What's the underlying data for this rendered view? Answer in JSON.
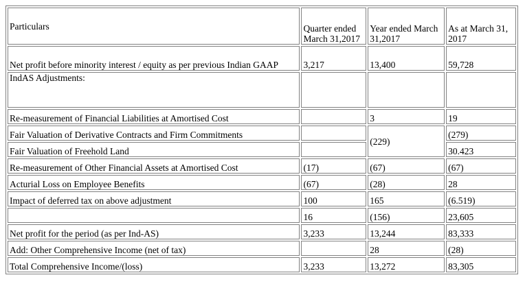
{
  "headers": {
    "particulars": "Particulars",
    "quarter": "Quarter ended March 31,2017",
    "year": "Year ended March 31,2017",
    "asat": "As at March 31, 2017"
  },
  "rows": {
    "net_profit_igaap": {
      "label": "Net profit before minority interest / equity as per previous Indian GAAP",
      "quarter": "3,217",
      "year": "13,400",
      "asat": "59,728"
    },
    "indas_title": "IndAS Adjustments:",
    "remeasure_fin_liab": {
      "label": "Re-measurement of Financial Liabilities at Amortised Cost",
      "quarter": "",
      "year": "3",
      "asat": "19"
    },
    "fv_derivatives": {
      "label": "Fair Valuation of Derivative Contracts and Firm Commitments",
      "quarter": "",
      "asat": "(279)"
    },
    "fv_derivatives_land_year": "(229)",
    "fv_land": {
      "label": "Fair Valuation of Freehold Land",
      "quarter": "",
      "asat": "30.423"
    },
    "remeasure_fin_assets": {
      "label": "Re-measurement of Other Financial Assets at Amortised Cost",
      "quarter": "(17)",
      "year": "(67)",
      "asat": "(67)"
    },
    "actuarial_loss": {
      "label": "Acturial Loss on Employee Benefits",
      "quarter": "(67)",
      "year": "(28)",
      "asat": "28"
    },
    "deferred_tax": {
      "label": "Impact of deferred tax on above adjustment",
      "quarter": "100",
      "year": "165",
      "asat": "(6.519)"
    },
    "subtotal": {
      "label": "",
      "quarter": "16",
      "year": "(156)",
      "asat": "23,605"
    },
    "net_profit_indas": {
      "label": "Net profit for the period (as per Ind-AS)",
      "quarter": "3,233",
      "year": "13,244",
      "asat": "83,333"
    },
    "oci": {
      "label": "Add: Other Comprehensive Income (net of tax)",
      "quarter": "",
      "year": "28",
      "asat": "(28)"
    },
    "total": {
      "label": "Total Comprehensive Income/(loss)",
      "quarter": "3,233",
      "year": "13,272",
      "asat": "83,305"
    }
  }
}
